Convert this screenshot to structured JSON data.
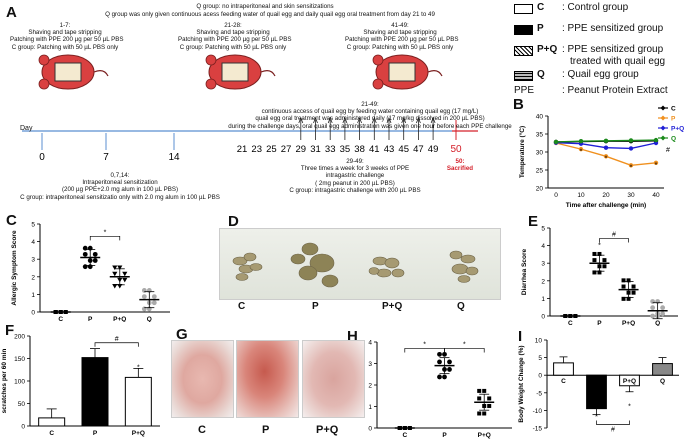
{
  "panel_letters": {
    "a": "A",
    "b": "B",
    "c": "C",
    "d": "D",
    "e": "E",
    "f": "F",
    "g": "G",
    "h": "H",
    "i": "I"
  },
  "protocol": {
    "q_group_line1": "Q group:  no intraperitoneal and skin sensitizations",
    "q_group_line2": "Q group was only given continuous acess feeding water of quail egg and daily quail egg oral treatment from day 21 to 49",
    "box1_title": "1-7:",
    "box1_l1": "Shaving and tape stripping",
    "box1_l2": "Patching with PPE 200 µg per 50 µL PBS",
    "box1_l3": "C group: Patching with 50 µL PBS only",
    "box2_title": "21-28:",
    "box2_l1": "Shaving and tape stripping",
    "box2_l2": "Patching with PPE 200 µg per 50 µL PBS",
    "box2_l3": "C group: Patching with 50 µL PBS only",
    "box3_title": "41-49:",
    "box3_l1": "Shaving and tape stripping",
    "box3_l2": "Patching with PPE 200 µg per 50 µL PBS",
    "box3_l3": "C group: Patching with 50 µL PBS only",
    "mid_title": "21-49:",
    "mid_l1": "continuous access of quail egg by feeding water containing quail egg (17 mg/L)",
    "mid_l2": "quail egg oral treatment was administered daily (17 mg/kg dissolved in 200 µL PBS)",
    "mid_l3": "during the challenge days, oral quail egg administration was given one hour before each PPE challenge",
    "day_label": "Day",
    "days_early": [
      "0",
      "7",
      "14"
    ],
    "days_late": [
      "21",
      "23",
      "25",
      "27",
      "29",
      "31",
      "33",
      "35",
      "38",
      "41",
      "43",
      "45",
      "47",
      "49"
    ],
    "day_50": "50",
    "ip_title": "0,7,14:",
    "ip_l1": "Intraperitoneal  sensitization",
    "ip_l2": "(200  µg PPE+2.0 mg alum in 100 µL PBS)",
    "ip_l3": "C group: intraperitoneal sensitizatio only with 2.0 mg alum in 100 µL PBS",
    "ig_title": "29-49:",
    "ig_l1": "Three times a week for 3 weeks of PPE",
    "ig_l2": "intragastric challenge",
    "ig_l3": "( 2mg peanut in 200 µL PBS)",
    "ig_l4": "C group: intragastric challenge with  200 µL PBS",
    "sac_title": "50:",
    "sac_label": "Sacrified"
  },
  "legend": {
    "c_key": "C",
    "c_desc": ": Control group",
    "p_key": "P",
    "p_desc": ": PPE sensitized group",
    "pq_key": "P+Q",
    "pq_desc1": ": PPE sensitized group",
    "pq_desc2": "treated with quail egg",
    "q_key": "Q",
    "q_desc": ": Quail egg group",
    "ppe_key": "PPE",
    "ppe_desc": ": Peanut Protein Extract"
  },
  "colors": {
    "C": "#000000",
    "P": "#f0901e",
    "PQ": "#1f1fd6",
    "Q": "#1a8a1a",
    "day50": "#d4202a"
  },
  "chart_data": [
    {
      "id": "B",
      "type": "line",
      "xlabel": "Time after challenge (min)",
      "ylabel": "Temperature (°C)",
      "x": [
        0,
        10,
        20,
        30,
        40
      ],
      "xlim": [
        0,
        40
      ],
      "ylim": [
        20,
        40
      ],
      "xticks": [
        "0",
        "10",
        "20",
        "30",
        "40"
      ],
      "yticks": [
        "20",
        "25",
        "30",
        "35",
        "40"
      ],
      "legend_position": "top-right",
      "series": [
        {
          "name": "C",
          "values": [
            32.8,
            32.9,
            33.0,
            33.0,
            33.1
          ]
        },
        {
          "name": "P",
          "values": [
            32.5,
            30.8,
            28.8,
            26.3,
            27.0
          ]
        },
        {
          "name": "P+Q",
          "values": [
            32.6,
            32.3,
            31.2,
            31.0,
            32.5
          ]
        },
        {
          "name": "Q",
          "values": [
            32.8,
            33.0,
            33.1,
            33.2,
            33.3
          ]
        }
      ],
      "annotations": [
        "*",
        "*",
        "*",
        "*",
        "#"
      ]
    },
    {
      "id": "C",
      "type": "scatter",
      "ylabel": "Allergic Symptom Score",
      "categories": [
        "C",
        "P",
        "P+Q",
        "Q"
      ],
      "ylim": [
        0,
        5
      ],
      "yticks": [
        "0",
        "1",
        "2",
        "3",
        "4",
        "5"
      ],
      "means": [
        0,
        3.1,
        2.0,
        0.7
      ],
      "annotations": [
        "*"
      ]
    },
    {
      "id": "E",
      "type": "scatter",
      "ylabel": "Diarrhea Score",
      "categories": [
        "C",
        "P",
        "P+Q",
        "Q"
      ],
      "ylim": [
        0,
        5
      ],
      "yticks": [
        "0",
        "1",
        "2",
        "3",
        "4",
        "5"
      ],
      "means": [
        0,
        3.0,
        1.5,
        0.3
      ],
      "annotations": [
        "*",
        "#"
      ]
    },
    {
      "id": "F",
      "type": "bar",
      "ylabel": "scratches per 60 min",
      "categories": [
        "C",
        "P",
        "P+Q"
      ],
      "values": [
        18,
        152,
        108
      ],
      "ylim": [
        0,
        200
      ],
      "yticks": [
        "0",
        "50",
        "100",
        "150",
        "200"
      ],
      "annotations": [
        "*",
        "#"
      ]
    },
    {
      "id": "H",
      "type": "scatter",
      "ylabel": "Dermatitis Score",
      "categories": [
        "C",
        "P",
        "P+Q"
      ],
      "ylim": [
        0,
        4
      ],
      "yticks": [
        "0",
        "1",
        "2",
        "3",
        "4"
      ],
      "means": [
        0,
        2.9,
        1.2
      ],
      "annotations": [
        "*",
        "*"
      ]
    },
    {
      "id": "I",
      "type": "bar",
      "ylabel": "Body Weight Change (%)",
      "categories": [
        "C",
        "P",
        "P+Q",
        "Q"
      ],
      "values": [
        3.5,
        -9.5,
        -3.0,
        3.3
      ],
      "ylim": [
        -15,
        10
      ],
      "yticks": [
        "-15",
        "-10",
        "-5",
        "0",
        "5",
        "10"
      ],
      "annotations": [
        "*",
        "*",
        "#"
      ]
    }
  ],
  "photo_labels": {
    "d": [
      "C",
      "P",
      "P+Q",
      "Q"
    ],
    "g": [
      "C",
      "P",
      "P+Q"
    ]
  }
}
